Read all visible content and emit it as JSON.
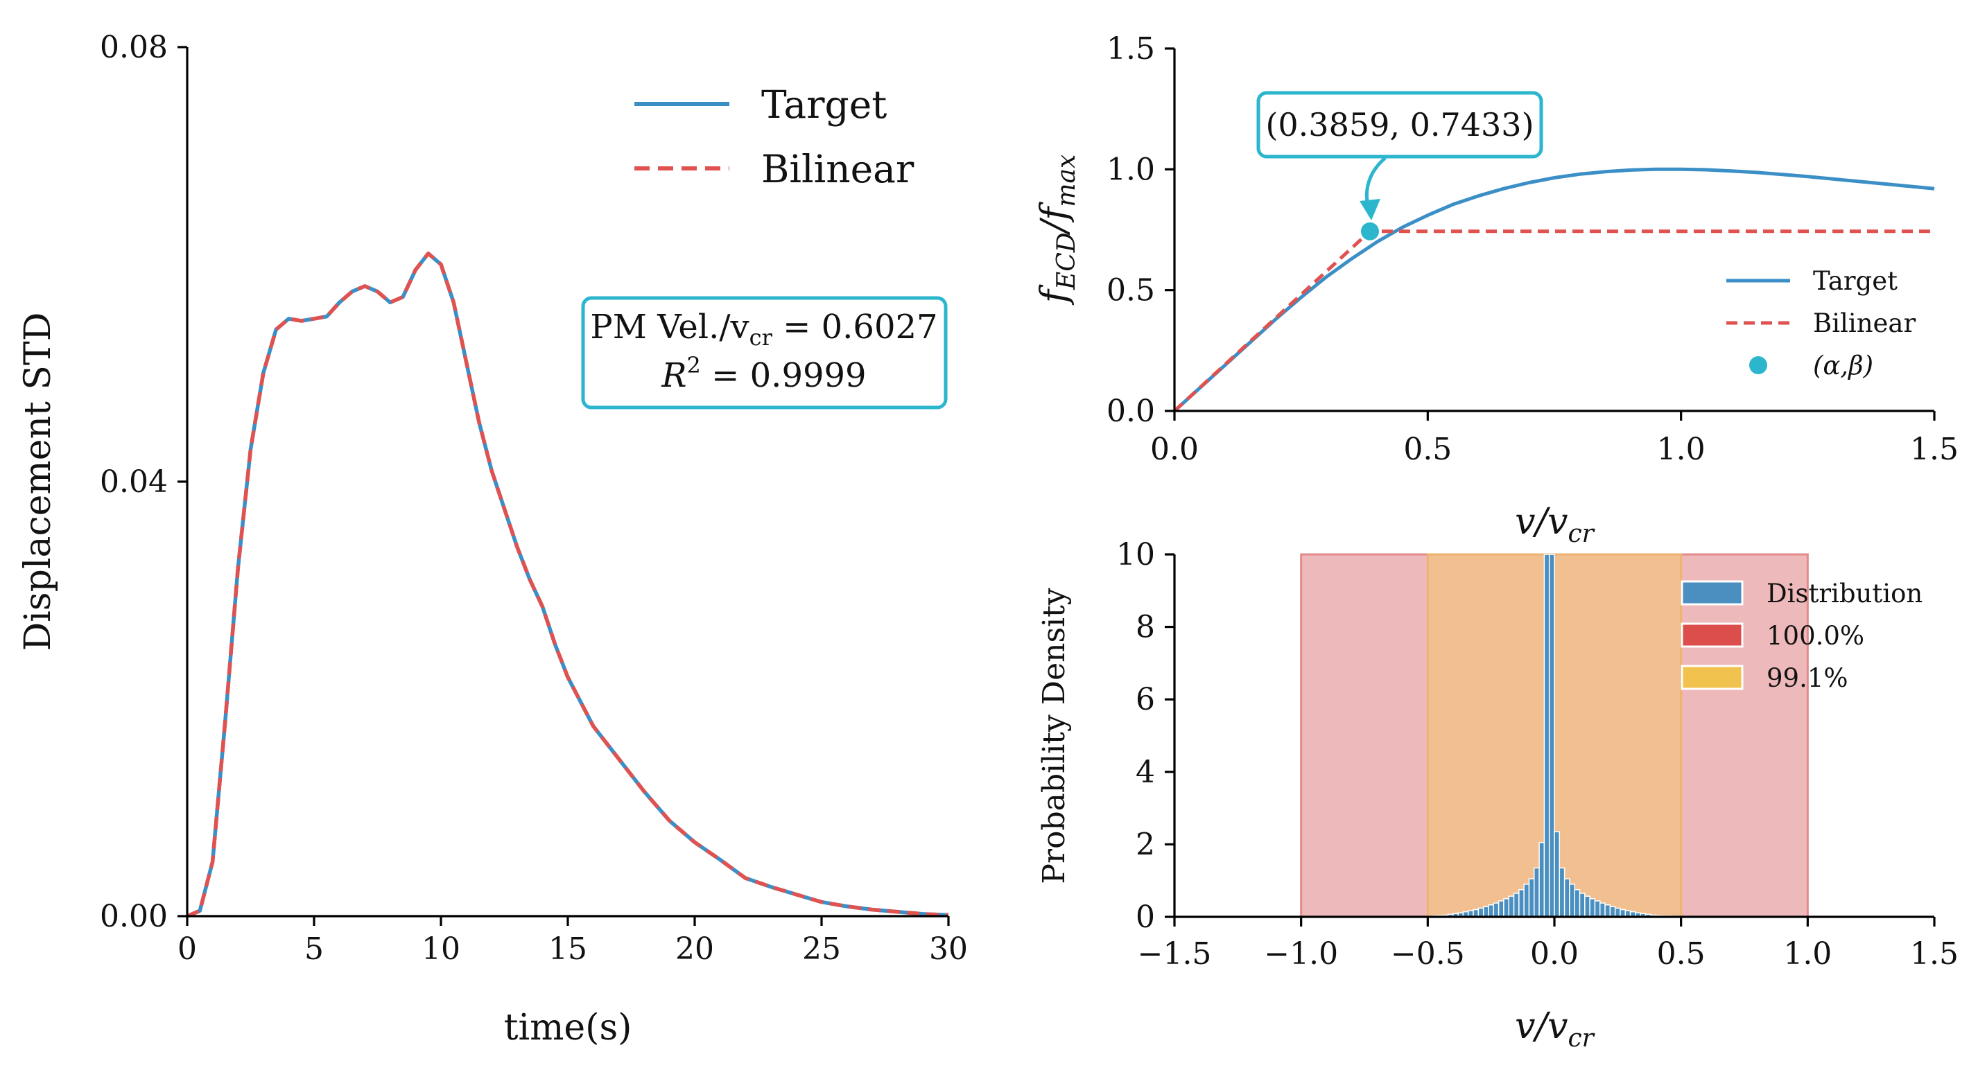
{
  "colors": {
    "target": "#3b8fc6",
    "bilinear": "#e05250",
    "point": "#2bb6cd",
    "annot_border": "#2bb6cd",
    "hist": "#4a8fbf",
    "band_outer": "#e8a2a3",
    "band_inner": "#f2c089",
    "band_outer_edge": "#e38a8a",
    "band_inner_edge": "#eeb36f"
  },
  "chart_data": [
    {
      "id": "left",
      "type": "line",
      "xlabel": "time(s)",
      "ylabel": "Displacement STD",
      "xlim": [
        0,
        30
      ],
      "ylim": [
        0,
        0.08
      ],
      "xticks": [
        0,
        5,
        10,
        15,
        20,
        25,
        30
      ],
      "xtick_labels": [
        "0",
        "5",
        "10",
        "15",
        "20",
        "25",
        "30"
      ],
      "yticks": [
        0,
        0.04,
        0.08
      ],
      "ytick_labels": [
        "0.00",
        "0.04",
        "0.08"
      ],
      "series": [
        {
          "name": "Target",
          "style": "solid",
          "x": [
            0,
            0.5,
            1,
            1.5,
            2,
            2.5,
            3,
            3.5,
            4,
            4.5,
            5,
            5.5,
            6,
            6.5,
            7,
            7.5,
            8,
            8.5,
            9,
            9.5,
            10,
            10.5,
            11,
            11.5,
            12,
            12.5,
            13,
            13.5,
            14,
            14.5,
            15,
            16,
            17,
            18,
            19,
            20,
            21,
            22,
            23,
            24,
            25,
            26,
            27,
            28,
            29,
            30
          ],
          "y": [
            0,
            0.0005,
            0.005,
            0.018,
            0.032,
            0.043,
            0.05,
            0.054,
            0.055,
            0.0548,
            0.055,
            0.0552,
            0.0565,
            0.0575,
            0.058,
            0.0575,
            0.0565,
            0.057,
            0.0595,
            0.061,
            0.06,
            0.0565,
            0.051,
            0.0455,
            0.041,
            0.0375,
            0.034,
            0.031,
            0.0285,
            0.025,
            0.022,
            0.0175,
            0.0145,
            0.0115,
            0.0088,
            0.0068,
            0.0052,
            0.0035,
            0.0027,
            0.002,
            0.0013,
            0.0009,
            0.0006,
            0.0004,
            0.0002,
            0.0001
          ]
        },
        {
          "name": "Bilinear",
          "style": "dashed",
          "x": [
            0,
            0.5,
            1,
            1.5,
            2,
            2.5,
            3,
            3.5,
            4,
            4.5,
            5,
            5.5,
            6,
            6.5,
            7,
            7.5,
            8,
            8.5,
            9,
            9.5,
            10,
            10.5,
            11,
            11.5,
            12,
            12.5,
            13,
            13.5,
            14,
            14.5,
            15,
            16,
            17,
            18,
            19,
            20,
            21,
            22,
            23,
            24,
            25,
            26,
            27,
            28,
            29,
            30
          ],
          "y": [
            0,
            0.0005,
            0.005,
            0.018,
            0.032,
            0.043,
            0.05,
            0.054,
            0.055,
            0.0548,
            0.055,
            0.0552,
            0.0565,
            0.0575,
            0.058,
            0.0575,
            0.0565,
            0.057,
            0.0595,
            0.061,
            0.06,
            0.0565,
            0.051,
            0.0455,
            0.041,
            0.0375,
            0.034,
            0.031,
            0.0285,
            0.025,
            0.022,
            0.0175,
            0.0145,
            0.0115,
            0.0088,
            0.0068,
            0.0052,
            0.0035,
            0.0027,
            0.002,
            0.0013,
            0.0009,
            0.0006,
            0.0004,
            0.0002,
            0.0001
          ]
        }
      ],
      "legend": [
        "Target",
        "Bilinear"
      ],
      "legend_position": "top-right",
      "annotation": {
        "line1": "PM Vel./v",
        "line1_sub": "cr",
        "line1_value": " = 0.6027",
        "line2": "R",
        "line2_sup": "2",
        "line2_value": " = 0.9999"
      }
    },
    {
      "id": "top-right",
      "type": "line",
      "xlabel": "v/v",
      "xlabel_sub": "cr",
      "ylabel": "f",
      "ylabel_sub1": "ECD",
      "ylabel_mid": "/f",
      "ylabel_sub2": "max",
      "xlim": [
        0,
        1.5
      ],
      "ylim": [
        0,
        1.5
      ],
      "xticks": [
        0,
        0.5,
        1.0,
        1.5
      ],
      "xtick_labels": [
        "0.0",
        "0.5",
        "1.0",
        "1.5"
      ],
      "yticks": [
        0,
        0.5,
        1.0,
        1.5
      ],
      "ytick_labels": [
        "0.0",
        "0.5",
        "1.0",
        "1.5"
      ],
      "series": [
        {
          "name": "Target",
          "style": "solid",
          "x": [
            0,
            0.05,
            0.1,
            0.15,
            0.2,
            0.25,
            0.3,
            0.35,
            0.4,
            0.45,
            0.5,
            0.55,
            0.6,
            0.65,
            0.7,
            0.75,
            0.8,
            0.85,
            0.9,
            0.95,
            1.0,
            1.05,
            1.1,
            1.15,
            1.2,
            1.25,
            1.3,
            1.35,
            1.4,
            1.45,
            1.5
          ],
          "y": [
            0,
            0.095,
            0.19,
            0.285,
            0.38,
            0.47,
            0.555,
            0.63,
            0.7,
            0.76,
            0.81,
            0.855,
            0.89,
            0.92,
            0.945,
            0.965,
            0.98,
            0.99,
            0.997,
            1.0,
            1.0,
            0.998,
            0.993,
            0.987,
            0.979,
            0.97,
            0.96,
            0.95,
            0.94,
            0.93,
            0.92
          ]
        },
        {
          "name": "Bilinear",
          "style": "dashed",
          "x": [
            0,
            0.3859,
            1.5
          ],
          "y": [
            0,
            0.7433,
            0.7433
          ]
        }
      ],
      "point": {
        "name": "(α,β)",
        "x": 0.3859,
        "y": 0.7433
      },
      "legend": [
        "Target",
        "Bilinear",
        "(α,β)"
      ],
      "legend_position": "lower-right",
      "annotation": {
        "text": "(0.3859, 0.7433)"
      }
    },
    {
      "id": "bottom-right",
      "type": "bar",
      "xlabel": "v/v",
      "xlabel_sub": "cr",
      "ylabel": "Probability Density",
      "xlim": [
        -1.5,
        1.5
      ],
      "ylim": [
        0,
        10
      ],
      "xticks": [
        -1.5,
        -1.0,
        -0.5,
        0.0,
        0.5,
        1.0,
        1.5
      ],
      "xtick_labels": [
        "−1.5",
        "−1.0",
        "−0.5",
        "0.0",
        "0.5",
        "1.0",
        "1.5"
      ],
      "yticks": [
        0,
        2,
        4,
        6,
        8,
        10
      ],
      "ytick_labels": [
        "0",
        "2",
        "4",
        "6",
        "8",
        "10"
      ],
      "bands": [
        {
          "name": "100.0%",
          "from": -1.0,
          "to": 1.0
        },
        {
          "name": "99.1%",
          "from": -0.5,
          "to": 0.5
        }
      ],
      "bin_width": 0.02,
      "bin_centers": [
        -0.49,
        -0.47,
        -0.45,
        -0.43,
        -0.41,
        -0.39,
        -0.37,
        -0.35,
        -0.33,
        -0.31,
        -0.29,
        -0.27,
        -0.25,
        -0.23,
        -0.21,
        -0.19,
        -0.17,
        -0.15,
        -0.13,
        -0.11,
        -0.09,
        -0.07,
        -0.05,
        -0.03,
        -0.01,
        0.01,
        0.03,
        0.05,
        0.07,
        0.09,
        0.11,
        0.13,
        0.15,
        0.17,
        0.19,
        0.21,
        0.23,
        0.25,
        0.27,
        0.29,
        0.31,
        0.33,
        0.35,
        0.37,
        0.39,
        0.41,
        0.43,
        0.45,
        0.47,
        0.49
      ],
      "values": [
        0.02,
        0.03,
        0.04,
        0.05,
        0.07,
        0.09,
        0.11,
        0.14,
        0.17,
        0.2,
        0.24,
        0.28,
        0.33,
        0.38,
        0.44,
        0.5,
        0.57,
        0.65,
        0.75,
        0.9,
        1.05,
        1.35,
        2.05,
        10.5,
        10.5,
        2.35,
        1.35,
        1.05,
        0.9,
        0.75,
        0.65,
        0.57,
        0.5,
        0.44,
        0.38,
        0.33,
        0.28,
        0.24,
        0.2,
        0.17,
        0.14,
        0.11,
        0.09,
        0.07,
        0.05,
        0.04,
        0.03,
        0.03,
        0.02,
        0.02
      ],
      "legend": [
        "Distribution",
        "100.0%",
        "99.1%"
      ],
      "legend_position": "top-right"
    }
  ]
}
